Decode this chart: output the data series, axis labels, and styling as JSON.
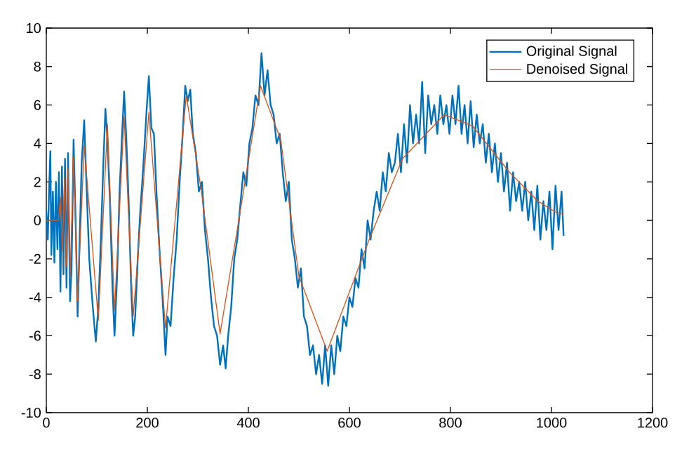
{
  "chart_data": {
    "type": "line",
    "xlim": [
      0,
      1200
    ],
    "ylim": [
      -10,
      10
    ],
    "xticks": [
      0,
      200,
      400,
      600,
      800,
      1000,
      1200
    ],
    "yticks": [
      -10,
      -8,
      -6,
      -4,
      -2,
      0,
      2,
      4,
      6,
      8,
      10
    ],
    "legend": "top right",
    "grid": false,
    "marker": "none",
    "line_style": "solid",
    "series": [
      {
        "name": "Original Signal",
        "color": "#0072bd",
        "x": [
          0,
          3,
          6,
          8,
          10,
          13,
          16,
          19,
          22,
          25,
          28,
          31,
          34,
          37,
          40,
          43,
          47,
          50,
          54,
          58,
          62,
          66,
          70,
          75,
          80,
          85,
          92,
          98,
          103,
          108,
          113,
          117,
          121,
          126,
          131,
          135,
          140,
          145,
          150,
          154,
          158,
          163,
          168,
          172,
          176,
          181,
          186,
          192,
          198,
          203,
          208,
          213,
          218,
          224,
          230,
          236,
          240,
          246,
          252,
          258,
          264,
          270,
          275,
          280,
          285,
          290,
          296,
          302,
          308,
          314,
          320,
          326,
          332,
          338,
          344,
          350,
          355,
          360,
          366,
          372,
          378,
          384,
          390,
          396,
          402,
          408,
          414,
          420,
          426,
          432,
          438,
          444,
          450,
          456,
          462,
          468,
          474,
          480,
          486,
          492,
          498,
          504,
          510,
          516,
          522,
          528,
          534,
          540,
          546,
          552,
          558,
          564,
          570,
          576,
          582,
          588,
          594,
          600,
          606,
          612,
          618,
          624,
          630,
          636,
          642,
          648,
          654,
          660,
          666,
          672,
          678,
          684,
          690,
          696,
          702,
          708,
          714,
          720,
          726,
          732,
          738,
          744,
          750,
          756,
          762,
          768,
          774,
          780,
          786,
          792,
          798,
          804,
          810,
          816,
          822,
          828,
          834,
          840,
          846,
          852,
          858,
          864,
          870,
          876,
          882,
          888,
          894,
          900,
          906,
          912,
          918,
          924,
          930,
          936,
          942,
          948,
          954,
          960,
          966,
          972,
          978,
          984,
          990,
          996,
          1002,
          1008,
          1014,
          1020,
          1024
        ],
        "values": [
          0.5,
          -1.0,
          2.0,
          3.6,
          -1.8,
          1.5,
          -2.2,
          2.0,
          -1.5,
          2.5,
          -3.7,
          2.8,
          -2.8,
          3.2,
          -3.5,
          3.5,
          -4.2,
          -2.5,
          4.2,
          0,
          -5.0,
          -1,
          3.0,
          5.2,
          1.5,
          -2.0,
          -4.5,
          -6.3,
          -4.5,
          -1,
          3.0,
          5.8,
          4.2,
          1,
          -3.5,
          -6.0,
          -3.0,
          1.5,
          4.5,
          6.7,
          4.5,
          1,
          -3.5,
          -6.0,
          -5,
          -2,
          0.5,
          2.8,
          5.5,
          7.5,
          4.8,
          4.5,
          1.5,
          -1.5,
          -4,
          -7.0,
          -5.0,
          -5.5,
          -3,
          -1,
          2.0,
          4.5,
          7.0,
          6.2,
          6.8,
          4.5,
          3.5,
          1.5,
          2.0,
          -0.5,
          -2.0,
          -4.0,
          -5.5,
          -6.0,
          -7.5,
          -6.5,
          -7.7,
          -6.0,
          -4.5,
          -2.0,
          -1.0,
          0.8,
          2.5,
          1.8,
          4.0,
          4.8,
          6.5,
          6.0,
          8.7,
          6.5,
          7.8,
          6.0,
          5.5,
          4.0,
          4.5,
          2.5,
          1.0,
          2.0,
          -1.0,
          -2.0,
          -3.5,
          -2.5,
          -5.0,
          -5.5,
          -7.0,
          -6.5,
          -8.0,
          -7.0,
          -8.5,
          -6.5,
          -8.6,
          -6.5,
          -8.0,
          -6.0,
          -6.8,
          -5.0,
          -5.5,
          -4.0,
          -4.5,
          -3.0,
          -3.5,
          -1.5,
          -2.5,
          0,
          -1.0,
          0.5,
          1.5,
          0.5,
          2.5,
          1.5,
          3.5,
          2.5,
          3.0,
          4.5,
          2.5,
          5.0,
          3.0,
          6.0,
          4.0,
          5.5,
          4.0,
          7.2,
          3.5,
          6.5,
          5.0,
          6.0,
          4.5,
          6.5,
          5.0,
          6.0,
          4.5,
          6.5,
          5.0,
          7.0,
          4.5,
          6.0,
          4.0,
          6.2,
          3.8,
          5.5,
          4.0,
          5.0,
          3.0,
          4.5,
          2.5,
          4.0,
          2.0,
          3.5,
          1.5,
          3.0,
          0.5,
          2.5,
          1.0,
          2.0,
          0.5,
          2.0,
          0,
          1.5,
          -0.5,
          1.8,
          -1.0,
          1.0,
          -0.5,
          1.5,
          -1.5,
          1.8,
          -0.5,
          1.5,
          -0.8
        ]
      },
      {
        "name": "Denoised Signal",
        "color": "#d95319",
        "x": [
          0,
          24,
          28,
          32,
          36,
          40,
          43,
          47,
          54,
          62,
          75,
          103,
          121,
          135,
          154,
          172,
          203,
          236,
          277,
          306,
          344,
          381,
          424,
          464,
          500,
          556,
          639,
          705,
          788,
          844,
          917,
          973,
          1010,
          1024
        ],
        "values": [
          0,
          0,
          1.2,
          -1.6,
          2.2,
          -2.4,
          2.7,
          -3.0,
          3.3,
          -4.2,
          3.9,
          -5.2,
          5.0,
          -4.7,
          5.4,
          -5.0,
          5.6,
          -5.6,
          6.5,
          1.7,
          -5.9,
          0.0,
          7.0,
          4.2,
          -2.9,
          -6.8,
          -1.0,
          3.2,
          5.5,
          4.9,
          2.5,
          1.0,
          0.4,
          0.35
        ]
      }
    ]
  }
}
